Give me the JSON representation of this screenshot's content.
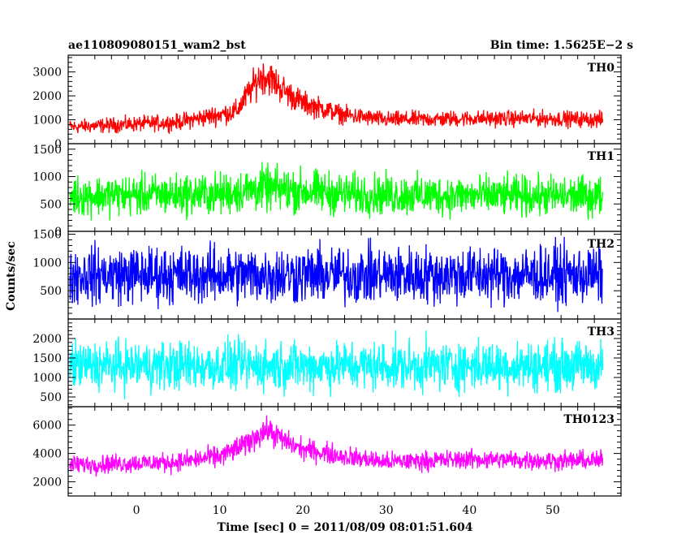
{
  "chart_data": {
    "type": "line",
    "title_left": "ae110809080151_wam2_bst",
    "title_right": "Bin time: 1.5625E−2 s",
    "xlabel": "Time [sec] 0 = 2011/08/09 08:01:51.604",
    "ylabel": "Counts/sec",
    "xlim": [
      -8.2,
      58.2
    ],
    "x_ticks": [
      0,
      10,
      20,
      30,
      40,
      50
    ],
    "data_x_range": [
      -8,
      56
    ],
    "grid": false,
    "panels": [
      {
        "name": "TH0",
        "color": "#ff0000",
        "ylim": [
          0,
          3700
        ],
        "y_ticks": [
          0,
          1000,
          2000,
          3000
        ],
        "profile": {
          "x": [
            -8,
            5,
            12,
            14,
            15,
            16,
            17,
            18,
            20,
            25,
            30,
            40,
            50,
            56
          ],
          "mean": [
            700,
            900,
            1350,
            2400,
            2850,
            2750,
            2450,
            2150,
            1700,
            1200,
            1000,
            1050,
            1050,
            1000
          ],
          "spread": [
            350,
            400,
            550,
            750,
            900,
            850,
            800,
            700,
            600,
            450,
            400,
            400,
            400,
            400
          ]
        }
      },
      {
        "name": "TH1",
        "color": "#00ff00",
        "ylim": [
          0,
          1600
        ],
        "y_ticks": [
          0,
          500,
          1000,
          1500
        ],
        "profile": {
          "x": [
            -8,
            10,
            15,
            18,
            25,
            40,
            56
          ],
          "mean": [
            650,
            680,
            780,
            760,
            680,
            650,
            640
          ],
          "spread": [
            430,
            450,
            480,
            480,
            450,
            430,
            430
          ]
        }
      },
      {
        "name": "TH2",
        "color": "#0000ff",
        "ylim": [
          0,
          1550
        ],
        "y_ticks": [
          500,
          1000,
          1500
        ],
        "profile": {
          "x": [
            -8,
            56
          ],
          "mean": [
            780,
            780
          ],
          "spread": [
            600,
            600
          ]
        }
      },
      {
        "name": "TH3",
        "color": "#00ffff",
        "ylim": [
          250,
          2500
        ],
        "y_ticks": [
          500,
          1000,
          1500,
          2000
        ],
        "profile": {
          "x": [
            -8,
            56
          ],
          "mean": [
            1300,
            1300
          ],
          "spread": [
            750,
            750
          ]
        }
      },
      {
        "name": "TH0123",
        "color": "#ff00ff",
        "ylim": [
          1000,
          7300
        ],
        "y_ticks": [
          2000,
          4000,
          6000
        ],
        "profile": {
          "x": [
            -8,
            5,
            10,
            13,
            15,
            16,
            17,
            18,
            20,
            25,
            30,
            40,
            50,
            56
          ],
          "mean": [
            3200,
            3400,
            3800,
            4600,
            5500,
            5600,
            5200,
            4800,
            4300,
            3800,
            3400,
            3600,
            3500,
            3500
          ],
          "spread": [
            800,
            800,
            900,
            1000,
            1100,
            1100,
            1000,
            950,
            900,
            850,
            800,
            800,
            800,
            800
          ]
        }
      }
    ]
  }
}
